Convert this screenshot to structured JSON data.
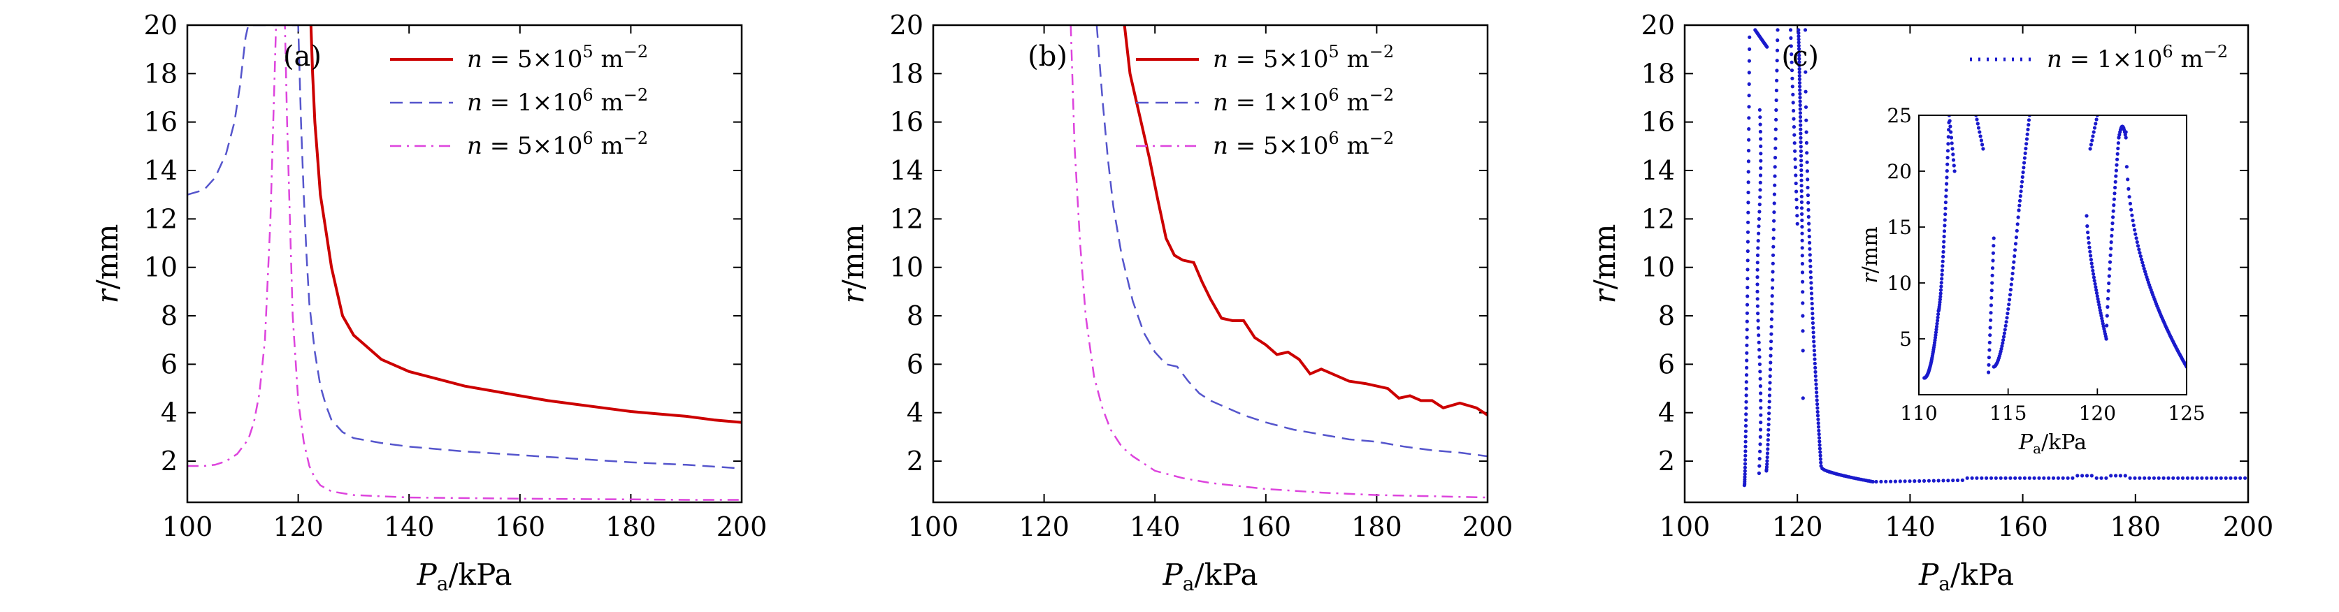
{
  "figure": {
    "y_axis_label": "r/mm",
    "x_axis_label": "Pa/kPa",
    "x_axis_symbol": "P",
    "x_axis_subscript": "a",
    "x_axis_unit": "/kPa"
  },
  "chart_data": [
    {
      "id": "a",
      "type": "line",
      "panel_label": "(a)",
      "xlabel": "Pa/kPa",
      "ylabel": "r/mm",
      "xlim": [
        100,
        200
      ],
      "ylim": [
        0.3,
        20
      ],
      "xticks": [
        100,
        120,
        140,
        160,
        180,
        200
      ],
      "yticks": [
        2,
        4,
        6,
        8,
        10,
        12,
        14,
        16,
        18,
        20
      ],
      "legend_position": "top-right",
      "series": [
        {
          "name": "n = 5×10^5 m^-2",
          "legend": {
            "pre": "n = 5×10",
            "sup": "5",
            "post": " m",
            "post_sup": "−2"
          },
          "color": "#cc0000",
          "style": "solid",
          "x": [
            122.3,
            122.6,
            123,
            123.5,
            124,
            125,
            126,
            127,
            128,
            130,
            132,
            135,
            140,
            145,
            150,
            155,
            160,
            165,
            170,
            175,
            180,
            185,
            190,
            195,
            200
          ],
          "y": [
            20,
            18,
            16,
            14.5,
            13,
            11.5,
            10,
            9,
            8,
            7.2,
            6.8,
            6.2,
            5.7,
            5.4,
            5.1,
            4.9,
            4.7,
            4.5,
            4.35,
            4.2,
            4.05,
            3.95,
            3.85,
            3.7,
            3.6
          ]
        },
        {
          "name": "n = 1×10^6 m^-2",
          "legend": {
            "pre": "n = 1×10",
            "sup": "6",
            "post": " m",
            "post_sup": "−2"
          },
          "color": "#5555cc",
          "style": "dashed",
          "x": [
            100,
            103,
            105,
            107,
            108.5,
            109.5,
            110.5,
            111,
            120,
            120.5,
            121,
            121.5,
            122,
            123,
            124,
            125,
            126,
            128,
            130,
            135,
            140,
            150,
            160,
            170,
            180,
            190,
            200
          ],
          "y": [
            13,
            13.2,
            13.7,
            14.7,
            16,
            17.5,
            19.5,
            20,
            20,
            16,
            13,
            10.5,
            8.5,
            6.5,
            5.1,
            4.3,
            3.7,
            3.2,
            2.95,
            2.75,
            2.6,
            2.4,
            2.25,
            2.1,
            1.95,
            1.85,
            1.7
          ]
        },
        {
          "name": "n = 5×10^6 m^-2",
          "legend": {
            "pre": "n = 5×10",
            "sup": "6",
            "post": " m",
            "post_sup": "−2"
          },
          "color": "#dd44dd",
          "style": "dashdot",
          "x": [
            100,
            103,
            105,
            107,
            109,
            111,
            112,
            113,
            114,
            115,
            115.5,
            116,
            117.6,
            118,
            118.5,
            119,
            120,
            121,
            122,
            123,
            124,
            126,
            130,
            140,
            160,
            180,
            190,
            200
          ],
          "y": [
            1.8,
            1.8,
            1.85,
            2.0,
            2.3,
            2.9,
            3.6,
            4.8,
            7.0,
            12,
            16,
            20,
            20,
            16,
            12,
            8,
            4.5,
            2.8,
            1.8,
            1.3,
            1.0,
            0.75,
            0.6,
            0.5,
            0.45,
            0.42,
            0.4,
            0.4
          ]
        }
      ]
    },
    {
      "id": "b",
      "type": "line",
      "panel_label": "(b)",
      "xlabel": "Pa/kPa",
      "ylabel": "r/mm",
      "xlim": [
        100,
        200
      ],
      "ylim": [
        0.3,
        20
      ],
      "xticks": [
        100,
        120,
        140,
        160,
        180,
        200
      ],
      "yticks": [
        2,
        4,
        6,
        8,
        10,
        12,
        14,
        16,
        18,
        20
      ],
      "legend_position": "top-right",
      "series": [
        {
          "name": "n = 5×10^5 m^-2",
          "legend": {
            "pre": "n = 5×10",
            "sup": "5",
            "post": " m",
            "post_sup": "−2"
          },
          "color": "#cc0000",
          "style": "solid",
          "x": [
            134.5,
            135.5,
            136.5,
            137.5,
            139,
            140.5,
            142,
            143.5,
            145,
            147,
            148.5,
            150,
            152,
            154,
            156,
            158,
            160,
            162,
            164,
            166,
            168,
            170,
            172,
            175,
            178,
            180,
            182,
            184,
            186,
            188,
            190,
            192,
            195,
            198,
            200
          ],
          "y": [
            20,
            18,
            17,
            16,
            14.5,
            12.8,
            11.2,
            10.5,
            10.3,
            10.2,
            9.4,
            8.7,
            7.9,
            7.8,
            7.8,
            7.1,
            6.8,
            6.4,
            6.5,
            6.2,
            5.6,
            5.8,
            5.6,
            5.3,
            5.2,
            5.1,
            5.0,
            4.6,
            4.7,
            4.5,
            4.5,
            4.2,
            4.4,
            4.2,
            3.9
          ]
        },
        {
          "name": "n = 1×10^6 m^-2",
          "legend": {
            "pre": "n = 1×10",
            "sup": "6",
            "post": " m",
            "post_sup": "−2"
          },
          "color": "#5555cc",
          "style": "dashed",
          "x": [
            129.5,
            130.5,
            131.5,
            132.5,
            134,
            136,
            138,
            140,
            142,
            144,
            146,
            148,
            150,
            153,
            156,
            160,
            165,
            170,
            175,
            180,
            185,
            190,
            195,
            200
          ],
          "y": [
            20,
            17,
            14.5,
            12.5,
            10.5,
            8.6,
            7.3,
            6.5,
            6.0,
            5.9,
            5.3,
            4.8,
            4.5,
            4.2,
            3.9,
            3.6,
            3.3,
            3.1,
            2.9,
            2.8,
            2.6,
            2.45,
            2.35,
            2.2
          ]
        },
        {
          "name": "n = 5×10^6 m^-2",
          "legend": {
            "pre": "n = 5×10",
            "sup": "6",
            "post": " m",
            "post_sup": "−2"
          },
          "color": "#dd44dd",
          "style": "dashdot",
          "x": [
            124.8,
            125.5,
            126.5,
            127.5,
            129,
            130.5,
            132,
            134,
            136,
            138,
            140,
            145,
            150,
            160,
            170,
            180,
            190,
            200
          ],
          "y": [
            20,
            15,
            11,
            8,
            5.5,
            4.2,
            3.3,
            2.6,
            2.2,
            1.9,
            1.6,
            1.3,
            1.1,
            0.85,
            0.7,
            0.6,
            0.55,
            0.5
          ]
        }
      ]
    },
    {
      "id": "c",
      "type": "scatter",
      "panel_label": "(c)",
      "xlabel": "Pa/kPa",
      "ylabel": "r/mm",
      "xlim": [
        100,
        200
      ],
      "ylim": [
        0.3,
        20
      ],
      "xticks": [
        100,
        120,
        140,
        160,
        180,
        200
      ],
      "yticks": [
        2,
        4,
        6,
        8,
        10,
        12,
        14,
        16,
        18,
        20
      ],
      "legend_position": "top-right",
      "series": [
        {
          "name": "n = 1×10^6 m^-2",
          "legend": {
            "pre": "n = 1×10",
            "sup": "6",
            "post": " m",
            "post_sup": "−2"
          },
          "color": "#1a1acc",
          "style": "dotted"
        }
      ],
      "inset": {
        "xlabel": "Pa/kPa",
        "ylabel": "r/mm",
        "xlim": [
          110,
          125
        ],
        "ylim": [
          0,
          25
        ],
        "xticks": [
          110,
          115,
          120,
          125
        ],
        "yticks": [
          5,
          10,
          15,
          20,
          25
        ]
      }
    }
  ]
}
